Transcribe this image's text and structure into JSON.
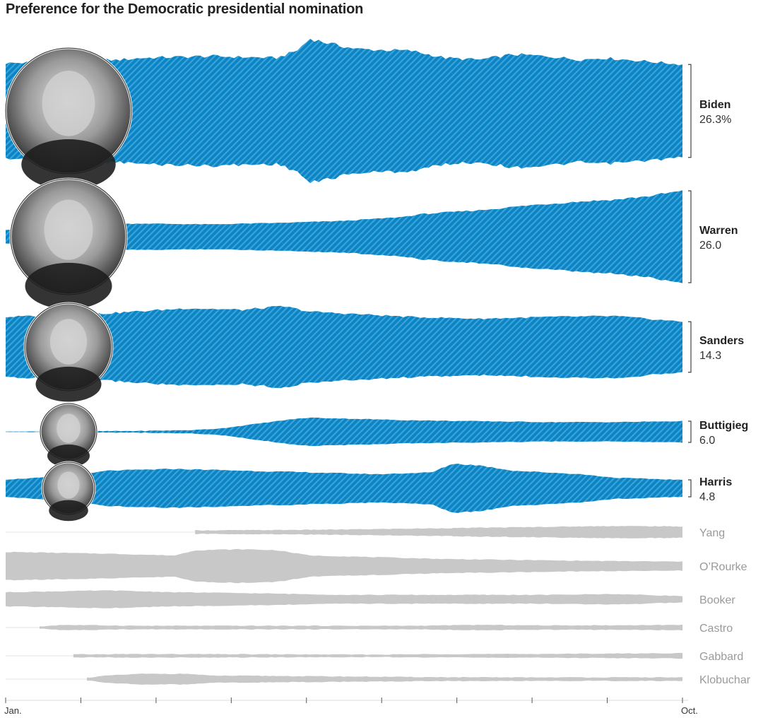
{
  "title": "Preference for the Democratic presidential nomination",
  "colors": {
    "highlight": "#0a84c4",
    "highlight_stripe": "#3ba3d8",
    "muted": "#c8c8c8",
    "axis": "#999999"
  },
  "chart_data": {
    "type": "area",
    "title": "Preference for the Democratic presidential nomination",
    "x_ticks": [
      "Jan.",
      "",
      "",
      "",
      "",
      "",
      "",
      "",
      "",
      "Oct."
    ],
    "candidates": [
      {
        "name": "Biden",
        "value_label": "26.3%",
        "highlight": true,
        "photo": "biden-photo",
        "series": [
          [
            0,
            27
          ],
          [
            0.17,
            29
          ],
          [
            0.2,
            30
          ],
          [
            0.3,
            31
          ],
          [
            0.4,
            30
          ],
          [
            0.43,
            34
          ],
          [
            0.45,
            41
          ],
          [
            0.48,
            38
          ],
          [
            0.52,
            35
          ],
          [
            0.6,
            34
          ],
          [
            0.65,
            30
          ],
          [
            0.7,
            29
          ],
          [
            0.75,
            32
          ],
          [
            0.8,
            31
          ],
          [
            0.85,
            29
          ],
          [
            0.88,
            30
          ],
          [
            0.92,
            29
          ],
          [
            0.95,
            28
          ],
          [
            1,
            26.3
          ]
        ]
      },
      {
        "name": "Warren",
        "value_label": "26.0",
        "highlight": true,
        "photo": "warren-photo",
        "series": [
          [
            0,
            4
          ],
          [
            0.15,
            7
          ],
          [
            0.2,
            7.5
          ],
          [
            0.3,
            7
          ],
          [
            0.42,
            8
          ],
          [
            0.5,
            9
          ],
          [
            0.58,
            11
          ],
          [
            0.62,
            13
          ],
          [
            0.7,
            15
          ],
          [
            0.78,
            18
          ],
          [
            0.85,
            20
          ],
          [
            0.9,
            21
          ],
          [
            0.95,
            23
          ],
          [
            1,
            26
          ]
        ]
      },
      {
        "name": "Sanders",
        "value_label": "14.3",
        "highlight": true,
        "photo": "sanders-photo",
        "series": [
          [
            0,
            17
          ],
          [
            0.15,
            19
          ],
          [
            0.27,
            22
          ],
          [
            0.35,
            21
          ],
          [
            0.41,
            23
          ],
          [
            0.45,
            20
          ],
          [
            0.5,
            19
          ],
          [
            0.6,
            17
          ],
          [
            0.7,
            16
          ],
          [
            0.8,
            17
          ],
          [
            0.9,
            17.5
          ],
          [
            1,
            14.3
          ]
        ]
      },
      {
        "name": "Buttigieg",
        "value_label": "6.0",
        "highlight": true,
        "photo": "buttigieg-photo",
        "series": [
          [
            0,
            0
          ],
          [
            0.2,
            0.5
          ],
          [
            0.28,
            1
          ],
          [
            0.32,
            2
          ],
          [
            0.38,
            5
          ],
          [
            0.42,
            7
          ],
          [
            0.45,
            8
          ],
          [
            0.5,
            7.5
          ],
          [
            0.6,
            6.5
          ],
          [
            0.7,
            6
          ],
          [
            0.8,
            5.5
          ],
          [
            0.9,
            5.5
          ],
          [
            1,
            6
          ]
        ]
      },
      {
        "name": "Harris",
        "value_label": "4.8",
        "highlight": true,
        "photo": "harris-photo",
        "series": [
          [
            0,
            5
          ],
          [
            0.1,
            7
          ],
          [
            0.15,
            10
          ],
          [
            0.25,
            11
          ],
          [
            0.35,
            10
          ],
          [
            0.45,
            9
          ],
          [
            0.55,
            8
          ],
          [
            0.63,
            9
          ],
          [
            0.66,
            14
          ],
          [
            0.7,
            13
          ],
          [
            0.75,
            10
          ],
          [
            0.85,
            8
          ],
          [
            0.9,
            6
          ],
          [
            1,
            4.8
          ]
        ]
      },
      {
        "name": "Yang",
        "highlight": false,
        "series": [
          [
            0.28,
            1
          ],
          [
            0.4,
            1.2
          ],
          [
            0.5,
            1.5
          ],
          [
            0.6,
            2
          ],
          [
            0.7,
            2.5
          ],
          [
            0.8,
            3
          ],
          [
            0.9,
            3.5
          ],
          [
            1,
            3.2
          ]
        ]
      },
      {
        "name": "O’Rourke",
        "highlight": false,
        "series": [
          [
            0,
            8
          ],
          [
            0.15,
            7
          ],
          [
            0.25,
            6
          ],
          [
            0.28,
            9
          ],
          [
            0.35,
            9.5
          ],
          [
            0.4,
            9
          ],
          [
            0.45,
            6
          ],
          [
            0.55,
            5
          ],
          [
            0.65,
            4
          ],
          [
            0.75,
            3.5
          ],
          [
            0.85,
            3
          ],
          [
            1,
            2.5
          ]
        ]
      },
      {
        "name": "Booker",
        "highlight": false,
        "series": [
          [
            0,
            4
          ],
          [
            0.15,
            5
          ],
          [
            0.25,
            4
          ],
          [
            0.35,
            3.5
          ],
          [
            0.43,
            3
          ],
          [
            0.5,
            2.5
          ],
          [
            0.6,
            2.5
          ],
          [
            0.7,
            2.5
          ],
          [
            0.8,
            2.5
          ],
          [
            0.9,
            3
          ],
          [
            1,
            1.8
          ]
        ]
      },
      {
        "name": "Castro",
        "highlight": false,
        "series": [
          [
            0.05,
            0.5
          ],
          [
            0.08,
            1.5
          ],
          [
            0.2,
            1
          ],
          [
            0.35,
            1
          ],
          [
            0.5,
            1
          ],
          [
            0.6,
            1
          ],
          [
            0.7,
            1.5
          ],
          [
            0.8,
            1.2
          ],
          [
            0.9,
            1.3
          ],
          [
            1,
            1.5
          ]
        ]
      },
      {
        "name": "Gabbard",
        "highlight": false,
        "series": [
          [
            0.1,
            0.8
          ],
          [
            0.2,
            1
          ],
          [
            0.35,
            0.9
          ],
          [
            0.45,
            0.8
          ],
          [
            0.55,
            0.7
          ],
          [
            0.65,
            1
          ],
          [
            0.75,
            1
          ],
          [
            0.85,
            1.2
          ],
          [
            1,
            1.5
          ]
        ]
      },
      {
        "name": "Klobuchar",
        "highlight": false,
        "series": [
          [
            0.12,
            0.8
          ],
          [
            0.15,
            2
          ],
          [
            0.2,
            3
          ],
          [
            0.27,
            3
          ],
          [
            0.3,
            2
          ],
          [
            0.4,
            1.8
          ],
          [
            0.5,
            1.5
          ],
          [
            0.6,
            1.2
          ],
          [
            0.7,
            1
          ],
          [
            0.8,
            1
          ],
          [
            0.9,
            1
          ],
          [
            1,
            1
          ]
        ]
      }
    ]
  }
}
